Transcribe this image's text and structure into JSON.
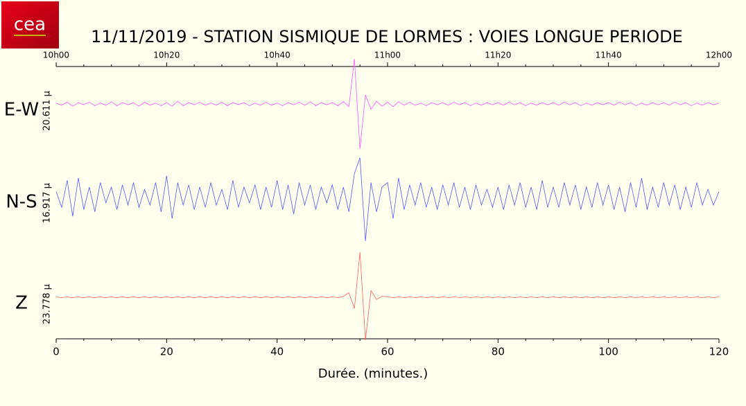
{
  "logo": "cea",
  "chart_data": {
    "type": "line",
    "title": "11/11/2019  -  STATION SISMIQUE DE LORMES : VOIES LONGUE PERIODE",
    "xlabel": "Durée.  (minutes.)",
    "xlim": [
      0,
      120
    ],
    "xticks": [
      0,
      20,
      40,
      60,
      80,
      100,
      120
    ],
    "xminorticks": [
      5,
      10,
      15,
      25,
      30,
      35,
      45,
      50,
      55,
      65,
      70,
      75,
      85,
      90,
      95,
      105,
      110,
      115
    ],
    "top_labels": [
      "10h00",
      "10h20",
      "10h40",
      "11h00",
      "11h20",
      "11h40",
      "12h00"
    ],
    "ylim": [
      -1,
      1
    ],
    "x": [
      0,
      1,
      2,
      3,
      4,
      5,
      6,
      7,
      8,
      9,
      10,
      11,
      12,
      13,
      14,
      15,
      16,
      17,
      18,
      19,
      20,
      21,
      22,
      23,
      24,
      25,
      26,
      27,
      28,
      29,
      30,
      31,
      32,
      33,
      34,
      35,
      36,
      37,
      38,
      39,
      40,
      41,
      42,
      43,
      44,
      45,
      46,
      47,
      48,
      49,
      50,
      51,
      52,
      53,
      54,
      55,
      56,
      57,
      58,
      59,
      60,
      61,
      62,
      63,
      64,
      65,
      66,
      67,
      68,
      69,
      70,
      71,
      72,
      73,
      74,
      75,
      76,
      77,
      78,
      79,
      80,
      81,
      82,
      83,
      84,
      85,
      86,
      87,
      88,
      89,
      90,
      91,
      92,
      93,
      94,
      95,
      96,
      97,
      98,
      99,
      100,
      101,
      102,
      103,
      104,
      105,
      106,
      107,
      108,
      109,
      110,
      111,
      112,
      113,
      114,
      115,
      116,
      117,
      118,
      119,
      120
    ],
    "series": [
      {
        "name": "E-W",
        "scale_label": "20.611 µ",
        "color": "#ff55ff",
        "values": [
          0.02,
          -0.03,
          0.04,
          -0.05,
          0.03,
          -0.02,
          0.04,
          -0.04,
          0.02,
          -0.03,
          0.05,
          -0.04,
          0.03,
          -0.02,
          0.03,
          -0.05,
          0.04,
          -0.03,
          0.02,
          -0.04,
          0.03,
          -0.05,
          0.06,
          -0.04,
          0.03,
          -0.02,
          0.04,
          -0.03,
          0.02,
          -0.03,
          0.04,
          -0.04,
          0.03,
          -0.02,
          0.03,
          -0.04,
          0.02,
          -0.03,
          0.04,
          -0.03,
          0.02,
          -0.04,
          0.03,
          -0.02,
          0.04,
          -0.03,
          0.05,
          -0.04,
          0.03,
          -0.02,
          0.03,
          -0.04,
          0.05,
          -0.06,
          1.0,
          -1.0,
          0.2,
          -0.12,
          0.06,
          -0.05,
          0.04,
          -0.06,
          0.05,
          -0.03,
          0.04,
          -0.03,
          0.02,
          -0.04,
          0.03,
          -0.02,
          0.03,
          -0.03,
          0.04,
          -0.02,
          0.03,
          -0.04,
          0.02,
          -0.03,
          0.03,
          -0.02,
          0.03,
          -0.03,
          0.04,
          -0.02,
          0.03,
          -0.04,
          0.02,
          -0.03,
          0.03,
          -0.02,
          0.03,
          -0.03,
          0.04,
          -0.02,
          0.03,
          -0.04,
          0.02,
          -0.03,
          0.03,
          -0.02,
          0.03,
          -0.03,
          0.04,
          -0.02,
          0.03,
          -0.04,
          0.02,
          -0.03,
          0.03,
          -0.02,
          0.03,
          -0.03,
          0.04,
          -0.02,
          0.03,
          -0.04,
          0.02,
          -0.03,
          0.03,
          -0.02,
          0.02
        ]
      },
      {
        "name": "N-S",
        "scale_label": "16.917 µ",
        "color": "#5555ff",
        "values": [
          0.1,
          -0.25,
          0.35,
          -0.45,
          0.4,
          -0.3,
          0.2,
          -0.35,
          0.3,
          -0.15,
          0.2,
          -0.3,
          0.25,
          -0.2,
          0.3,
          -0.25,
          0.15,
          -0.2,
          0.3,
          -0.35,
          0.45,
          -0.5,
          0.3,
          -0.2,
          0.25,
          -0.3,
          0.2,
          -0.25,
          0.3,
          -0.2,
          0.15,
          -0.3,
          0.35,
          -0.25,
          0.2,
          -0.15,
          0.25,
          -0.3,
          0.2,
          -0.25,
          0.35,
          -0.3,
          0.25,
          -0.4,
          0.3,
          -0.2,
          0.25,
          -0.3,
          0.2,
          -0.15,
          0.25,
          -0.3,
          0.2,
          -0.35,
          0.5,
          0.85,
          -1.0,
          0.3,
          -0.35,
          0.2,
          0.3,
          -0.5,
          0.4,
          -0.3,
          0.25,
          -0.2,
          0.3,
          -0.25,
          0.2,
          -0.3,
          0.25,
          -0.2,
          0.3,
          -0.25,
          0.2,
          -0.3,
          0.25,
          -0.2,
          0.15,
          -0.25,
          0.2,
          -0.3,
          0.25,
          -0.2,
          0.3,
          -0.25,
          0.2,
          -0.3,
          0.35,
          -0.25,
          0.2,
          -0.25,
          0.3,
          -0.2,
          0.25,
          -0.3,
          0.2,
          -0.25,
          0.3,
          -0.2,
          0.25,
          -0.3,
          0.2,
          -0.35,
          0.3,
          -0.25,
          0.4,
          -0.3,
          0.2,
          -0.25,
          0.3,
          -0.2,
          0.25,
          -0.3,
          0.2,
          -0.25,
          0.3,
          -0.2,
          0.15,
          -0.2,
          0.1
        ]
      },
      {
        "name": "Z",
        "scale_label": "23.778 µ",
        "color": "#ff6060",
        "values": [
          0.01,
          -0.01,
          0.01,
          -0.01,
          0.01,
          -0.01,
          0.01,
          -0.01,
          0.01,
          -0.01,
          0.01,
          -0.01,
          0.01,
          -0.01,
          0.01,
          -0.01,
          0.01,
          -0.01,
          0.01,
          -0.01,
          0.01,
          -0.01,
          0.01,
          -0.01,
          0.01,
          -0.01,
          0.01,
          -0.01,
          0.01,
          -0.01,
          0.01,
          -0.01,
          0.01,
          -0.01,
          0.01,
          -0.01,
          0.01,
          -0.01,
          0.01,
          -0.01,
          0.01,
          -0.01,
          0.01,
          -0.01,
          0.01,
          -0.01,
          0.01,
          -0.01,
          0.01,
          -0.01,
          0.01,
          -0.01,
          0.02,
          0.1,
          -0.25,
          1.0,
          -0.95,
          0.15,
          -0.05,
          0.02,
          0.01,
          -0.01,
          0.01,
          -0.01,
          0.01,
          -0.01,
          0.01,
          -0.01,
          0.01,
          -0.01,
          0.01,
          -0.01,
          0.01,
          -0.01,
          0.01,
          -0.01,
          0.01,
          -0.01,
          0.01,
          -0.01,
          0.01,
          -0.01,
          0.01,
          -0.01,
          0.01,
          -0.01,
          0.01,
          -0.01,
          0.01,
          -0.01,
          0.01,
          -0.01,
          0.01,
          -0.01,
          0.01,
          -0.01,
          0.01,
          -0.01,
          0.01,
          -0.01,
          0.01,
          -0.01,
          0.01,
          -0.01,
          0.01,
          -0.01,
          0.01,
          -0.01,
          0.01,
          -0.01,
          0.01,
          -0.01,
          0.01,
          -0.01,
          0.01,
          -0.01,
          0.01,
          -0.01,
          0.01,
          -0.01,
          0.01
        ]
      }
    ]
  }
}
